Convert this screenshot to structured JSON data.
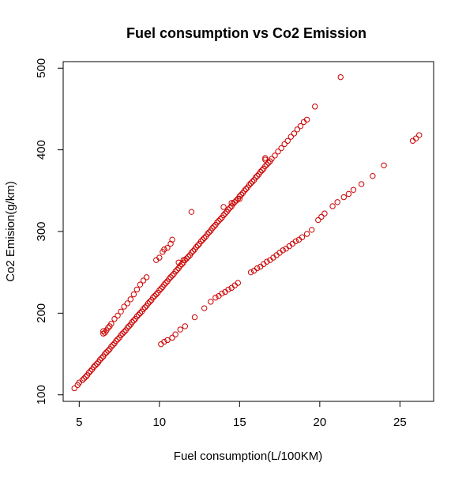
{
  "chart_data": {
    "type": "scatter",
    "title": "Fuel consumption vs Co2 Emission",
    "xlabel": "Fuel consumption(L/100KM)",
    "ylabel": "Co2 Emision(g/km)",
    "xlim": [
      4.0,
      27.1
    ],
    "ylim": [
      92,
      508
    ],
    "x_ticks": [
      5,
      10,
      15,
      20,
      25
    ],
    "y_ticks": [
      100,
      200,
      300,
      400,
      500
    ],
    "marker_color": "#cc0000",
    "series": [
      {
        "points": [
          [
            4.7,
            108
          ],
          [
            4.9,
            112
          ],
          [
            5.0,
            115
          ],
          [
            5.2,
            118
          ],
          [
            5.3,
            120
          ],
          [
            5.4,
            122
          ],
          [
            5.5,
            124
          ],
          [
            5.6,
            127
          ],
          [
            5.7,
            129
          ],
          [
            5.8,
            131
          ],
          [
            5.9,
            134
          ],
          [
            6.0,
            136
          ],
          [
            6.1,
            138
          ],
          [
            6.2,
            140
          ],
          [
            6.3,
            143
          ],
          [
            6.4,
            145
          ],
          [
            6.5,
            147
          ],
          [
            6.6,
            150
          ],
          [
            6.7,
            152
          ],
          [
            6.8,
            154
          ],
          [
            6.9,
            156
          ],
          [
            7.0,
            159
          ],
          [
            7.1,
            161
          ],
          [
            7.2,
            163
          ],
          [
            7.3,
            166
          ],
          [
            7.4,
            168
          ],
          [
            7.5,
            170
          ],
          [
            7.6,
            173
          ],
          [
            7.7,
            175
          ],
          [
            7.8,
            177
          ],
          [
            7.9,
            179
          ],
          [
            8.0,
            182
          ],
          [
            8.1,
            184
          ],
          [
            8.2,
            186
          ],
          [
            8.3,
            189
          ],
          [
            8.4,
            191
          ],
          [
            8.5,
            193
          ],
          [
            8.6,
            196
          ],
          [
            8.7,
            198
          ],
          [
            8.8,
            200
          ],
          [
            8.9,
            202
          ],
          [
            9.0,
            205
          ],
          [
            9.1,
            207
          ],
          [
            9.2,
            209
          ],
          [
            9.3,
            212
          ],
          [
            9.4,
            214
          ],
          [
            9.5,
            216
          ],
          [
            9.6,
            219
          ],
          [
            9.7,
            221
          ],
          [
            9.8,
            223
          ],
          [
            9.9,
            225
          ],
          [
            10.0,
            228
          ],
          [
            10.1,
            230
          ],
          [
            10.2,
            232
          ],
          [
            10.3,
            235
          ],
          [
            10.4,
            237
          ],
          [
            10.5,
            239
          ],
          [
            10.6,
            242
          ],
          [
            10.7,
            244
          ],
          [
            10.8,
            246
          ],
          [
            10.9,
            248
          ],
          [
            11.0,
            251
          ],
          [
            11.1,
            253
          ],
          [
            11.2,
            255
          ],
          [
            11.3,
            258
          ],
          [
            11.4,
            260
          ],
          [
            11.5,
            262
          ],
          [
            11.6,
            265
          ],
          [
            11.7,
            267
          ],
          [
            11.8,
            269
          ],
          [
            11.9,
            271
          ],
          [
            12.0,
            274
          ],
          [
            12.1,
            276
          ],
          [
            12.2,
            278
          ],
          [
            12.3,
            281
          ],
          [
            12.4,
            283
          ],
          [
            12.5,
            285
          ],
          [
            12.6,
            288
          ],
          [
            12.7,
            290
          ],
          [
            12.8,
            292
          ],
          [
            12.9,
            294
          ],
          [
            13.0,
            297
          ],
          [
            13.1,
            299
          ],
          [
            13.2,
            301
          ],
          [
            13.3,
            304
          ],
          [
            13.4,
            306
          ],
          [
            13.5,
            308
          ],
          [
            13.6,
            311
          ],
          [
            13.7,
            313
          ],
          [
            13.8,
            315
          ],
          [
            13.9,
            317
          ],
          [
            14.0,
            320
          ],
          [
            14.1,
            322
          ],
          [
            14.2,
            324
          ],
          [
            14.3,
            327
          ],
          [
            14.4,
            329
          ],
          [
            14.5,
            331
          ],
          [
            14.6,
            334
          ],
          [
            14.7,
            336
          ],
          [
            14.8,
            338
          ],
          [
            14.9,
            340
          ],
          [
            15.0,
            343
          ],
          [
            15.1,
            345
          ],
          [
            15.2,
            347
          ],
          [
            15.3,
            350
          ],
          [
            15.4,
            352
          ],
          [
            15.5,
            354
          ],
          [
            15.6,
            357
          ],
          [
            15.7,
            359
          ],
          [
            15.8,
            361
          ],
          [
            15.9,
            363
          ],
          [
            16.0,
            366
          ],
          [
            16.1,
            368
          ],
          [
            16.2,
            370
          ],
          [
            16.3,
            373
          ],
          [
            16.4,
            375
          ],
          [
            16.5,
            377
          ],
          [
            16.6,
            380
          ],
          [
            16.7,
            382
          ],
          [
            16.8,
            384
          ],
          [
            16.9,
            386
          ],
          [
            17.0,
            389
          ],
          [
            17.2,
            393
          ],
          [
            17.4,
            398
          ],
          [
            17.6,
            402
          ],
          [
            17.8,
            407
          ],
          [
            18.0,
            411
          ],
          [
            18.2,
            416
          ],
          [
            18.4,
            420
          ],
          [
            18.6,
            425
          ],
          [
            18.8,
            429
          ],
          [
            19.0,
            434
          ],
          [
            19.2,
            437
          ],
          [
            6.5,
            175
          ],
          [
            6.5,
            178
          ],
          [
            6.6,
            176
          ],
          [
            6.7,
            179
          ],
          [
            6.8,
            182
          ],
          [
            6.9,
            184
          ],
          [
            7.0,
            187
          ],
          [
            7.2,
            193
          ],
          [
            7.4,
            197
          ],
          [
            7.6,
            202
          ],
          [
            7.8,
            208
          ],
          [
            8.0,
            212
          ],
          [
            8.2,
            217
          ],
          [
            8.4,
            223
          ],
          [
            8.6,
            229
          ],
          [
            8.8,
            235
          ],
          [
            9.0,
            240
          ],
          [
            9.2,
            244
          ],
          [
            9.8,
            265
          ],
          [
            10.0,
            268
          ],
          [
            10.2,
            275
          ],
          [
            10.3,
            278
          ],
          [
            10.5,
            280
          ],
          [
            10.7,
            285
          ],
          [
            10.8,
            290
          ],
          [
            11.2,
            262
          ],
          [
            11.5,
            265
          ],
          [
            12.0,
            324
          ],
          [
            14.0,
            330
          ],
          [
            14.5,
            335
          ],
          [
            15.0,
            340
          ],
          [
            16.6,
            388
          ],
          [
            16.6,
            390
          ],
          [
            19.7,
            453
          ],
          [
            21.3,
            489
          ],
          [
            10.1,
            162
          ],
          [
            10.3,
            165
          ],
          [
            10.5,
            167
          ],
          [
            10.8,
            170
          ],
          [
            11.0,
            174
          ],
          [
            11.3,
            180
          ],
          [
            11.6,
            184
          ],
          [
            12.2,
            195
          ],
          [
            12.8,
            206
          ],
          [
            13.2,
            214
          ],
          [
            13.5,
            219
          ],
          [
            13.7,
            221
          ],
          [
            13.9,
            224
          ],
          [
            14.1,
            226
          ],
          [
            14.3,
            229
          ],
          [
            14.5,
            231
          ],
          [
            14.7,
            234
          ],
          [
            14.9,
            237
          ],
          [
            15.7,
            250
          ],
          [
            15.9,
            252
          ],
          [
            16.1,
            255
          ],
          [
            16.3,
            257
          ],
          [
            16.5,
            260
          ],
          [
            16.7,
            263
          ],
          [
            16.9,
            265
          ],
          [
            17.1,
            268
          ],
          [
            17.3,
            271
          ],
          [
            17.5,
            274
          ],
          [
            17.7,
            277
          ],
          [
            17.9,
            279
          ],
          [
            18.1,
            282
          ],
          [
            18.3,
            285
          ],
          [
            18.5,
            288
          ],
          [
            18.7,
            290
          ],
          [
            18.9,
            293
          ],
          [
            19.2,
            297
          ],
          [
            19.5,
            302
          ],
          [
            19.9,
            314
          ],
          [
            20.1,
            318
          ],
          [
            20.3,
            322
          ],
          [
            20.8,
            331
          ],
          [
            21.1,
            336
          ],
          [
            21.5,
            342
          ],
          [
            21.8,
            346
          ],
          [
            22.1,
            351
          ],
          [
            22.6,
            358
          ],
          [
            23.3,
            368
          ],
          [
            24.0,
            381
          ],
          [
            25.8,
            411
          ],
          [
            26.0,
            414
          ],
          [
            26.2,
            418
          ]
        ]
      }
    ]
  }
}
